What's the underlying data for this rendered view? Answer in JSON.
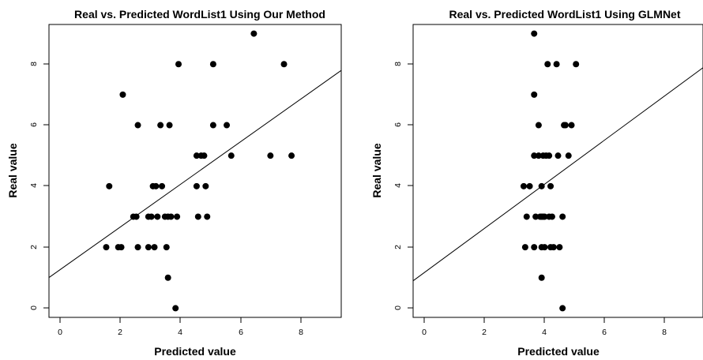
{
  "chart_data": [
    {
      "type": "scatter",
      "title": "Real vs. Predicted WordList1 Using Our Method",
      "xlabel": "Predicted value",
      "ylabel": "Real value",
      "xlim": [
        -0.35,
        9.35
      ],
      "ylim": [
        -0.3,
        9.3
      ],
      "xticks": [
        0,
        2,
        4,
        6,
        8
      ],
      "yticks": [
        0,
        2,
        4,
        6,
        8
      ],
      "x_tick_labels": [
        "0",
        "2",
        "4",
        "6",
        "8"
      ],
      "y_tick_labels": [
        "0",
        "2",
        "4",
        "6",
        "8"
      ],
      "fit_line": {
        "intercept": 1.25,
        "slope": 0.7
      },
      "points": [
        {
          "x": 6.45,
          "y": 9
        },
        {
          "x": 3.95,
          "y": 8
        },
        {
          "x": 5.1,
          "y": 8
        },
        {
          "x": 7.45,
          "y": 8
        },
        {
          "x": 2.1,
          "y": 7
        },
        {
          "x": 2.6,
          "y": 6
        },
        {
          "x": 3.35,
          "y": 6
        },
        {
          "x": 3.65,
          "y": 6
        },
        {
          "x": 5.1,
          "y": 6
        },
        {
          "x": 5.55,
          "y": 6
        },
        {
          "x": 4.55,
          "y": 5
        },
        {
          "x": 4.7,
          "y": 5
        },
        {
          "x": 4.8,
          "y": 5
        },
        {
          "x": 5.7,
          "y": 5
        },
        {
          "x": 7.0,
          "y": 5
        },
        {
          "x": 7.7,
          "y": 5
        },
        {
          "x": 1.65,
          "y": 4
        },
        {
          "x": 3.1,
          "y": 4
        },
        {
          "x": 3.2,
          "y": 4
        },
        {
          "x": 3.4,
          "y": 4
        },
        {
          "x": 4.55,
          "y": 4
        },
        {
          "x": 4.85,
          "y": 4
        },
        {
          "x": 2.45,
          "y": 3
        },
        {
          "x": 2.55,
          "y": 3
        },
        {
          "x": 2.95,
          "y": 3
        },
        {
          "x": 3.05,
          "y": 3
        },
        {
          "x": 3.25,
          "y": 3
        },
        {
          "x": 3.5,
          "y": 3
        },
        {
          "x": 3.6,
          "y": 3
        },
        {
          "x": 3.7,
          "y": 3
        },
        {
          "x": 3.9,
          "y": 3
        },
        {
          "x": 4.6,
          "y": 3
        },
        {
          "x": 4.9,
          "y": 3
        },
        {
          "x": 1.55,
          "y": 2
        },
        {
          "x": 1.95,
          "y": 2
        },
        {
          "x": 2.05,
          "y": 2
        },
        {
          "x": 2.6,
          "y": 2
        },
        {
          "x": 2.95,
          "y": 2
        },
        {
          "x": 3.15,
          "y": 2
        },
        {
          "x": 3.55,
          "y": 2
        },
        {
          "x": 3.6,
          "y": 1
        },
        {
          "x": 3.85,
          "y": 0
        }
      ]
    },
    {
      "type": "scatter",
      "title": "Real vs. Predicted WordList1 Using GLMNet",
      "xlabel": "Predicted value",
      "ylabel": "Real value",
      "xlim": [
        -0.35,
        9.35
      ],
      "ylim": [
        -0.3,
        9.3
      ],
      "xticks": [
        0,
        2,
        4,
        6,
        8
      ],
      "yticks": [
        0,
        2,
        4,
        6,
        8
      ],
      "x_tick_labels": [
        "0",
        "2",
        "4",
        "6",
        "8"
      ],
      "y_tick_labels": [
        "0",
        "2",
        "4",
        "6",
        "8"
      ],
      "fit_line": {
        "intercept": 1.15,
        "slope": 0.72
      },
      "points": [
        {
          "x": 3.7,
          "y": 9
        },
        {
          "x": 4.15,
          "y": 8
        },
        {
          "x": 4.45,
          "y": 8
        },
        {
          "x": 5.1,
          "y": 8
        },
        {
          "x": 3.7,
          "y": 7
        },
        {
          "x": 3.85,
          "y": 6
        },
        {
          "x": 4.7,
          "y": 6
        },
        {
          "x": 4.75,
          "y": 6
        },
        {
          "x": 4.95,
          "y": 6
        },
        {
          "x": 3.7,
          "y": 5
        },
        {
          "x": 3.85,
          "y": 5
        },
        {
          "x": 4.0,
          "y": 5
        },
        {
          "x": 4.1,
          "y": 5
        },
        {
          "x": 4.2,
          "y": 5
        },
        {
          "x": 4.5,
          "y": 5
        },
        {
          "x": 4.85,
          "y": 5
        },
        {
          "x": 3.35,
          "y": 4
        },
        {
          "x": 3.55,
          "y": 4
        },
        {
          "x": 3.95,
          "y": 4
        },
        {
          "x": 4.25,
          "y": 4
        },
        {
          "x": 3.45,
          "y": 3
        },
        {
          "x": 3.75,
          "y": 3
        },
        {
          "x": 3.9,
          "y": 3
        },
        {
          "x": 3.95,
          "y": 3
        },
        {
          "x": 4.0,
          "y": 3
        },
        {
          "x": 4.05,
          "y": 3
        },
        {
          "x": 4.2,
          "y": 3
        },
        {
          "x": 4.3,
          "y": 3
        },
        {
          "x": 4.65,
          "y": 3
        },
        {
          "x": 3.4,
          "y": 2
        },
        {
          "x": 3.7,
          "y": 2
        },
        {
          "x": 3.95,
          "y": 2
        },
        {
          "x": 4.05,
          "y": 2
        },
        {
          "x": 4.25,
          "y": 2
        },
        {
          "x": 4.35,
          "y": 2
        },
        {
          "x": 4.55,
          "y": 2
        },
        {
          "x": 3.95,
          "y": 1
        },
        {
          "x": 4.65,
          "y": 0
        }
      ]
    }
  ]
}
